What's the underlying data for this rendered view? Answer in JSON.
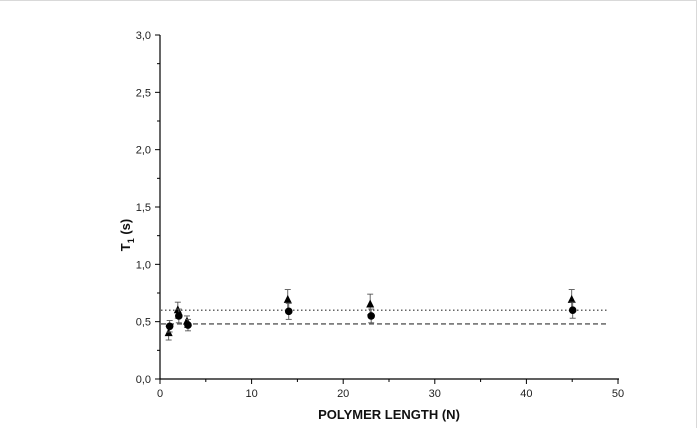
{
  "chart_data": {
    "type": "scatter",
    "xlabel": "POLYMER LENGTH (N)",
    "ylabel_main": "T",
    "ylabel_sub": "1",
    "ylabel_rest": " (s)",
    "xlim": [
      0,
      50
    ],
    "ylim": [
      0.0,
      3.0
    ],
    "x_ticks": [
      "0",
      "10",
      "20",
      "30",
      "40",
      "50"
    ],
    "y_ticks": [
      "0,0",
      "0,5",
      "1,0",
      "1,5",
      "2,0",
      "2,5",
      "3,0"
    ],
    "grid": false,
    "series": [
      {
        "marker": "triangle",
        "color": "#000000",
        "x": [
          1,
          2,
          3,
          14,
          23,
          45
        ],
        "y": [
          0.4,
          0.6,
          0.5,
          0.69,
          0.65,
          0.69
        ],
        "err": [
          0.06,
          0.07,
          0.05,
          0.09,
          0.09,
          0.09
        ]
      },
      {
        "marker": "circle",
        "color": "#000000",
        "x": [
          1,
          2,
          3,
          14,
          23,
          45
        ],
        "y": [
          0.46,
          0.55,
          0.47,
          0.59,
          0.55,
          0.6
        ],
        "err": [
          0.05,
          0.06,
          0.05,
          0.07,
          0.06,
          0.07
        ]
      }
    ],
    "reference_lines": [
      {
        "style": "dotted",
        "y": 0.6
      },
      {
        "style": "dashed",
        "y": 0.48
      }
    ]
  }
}
